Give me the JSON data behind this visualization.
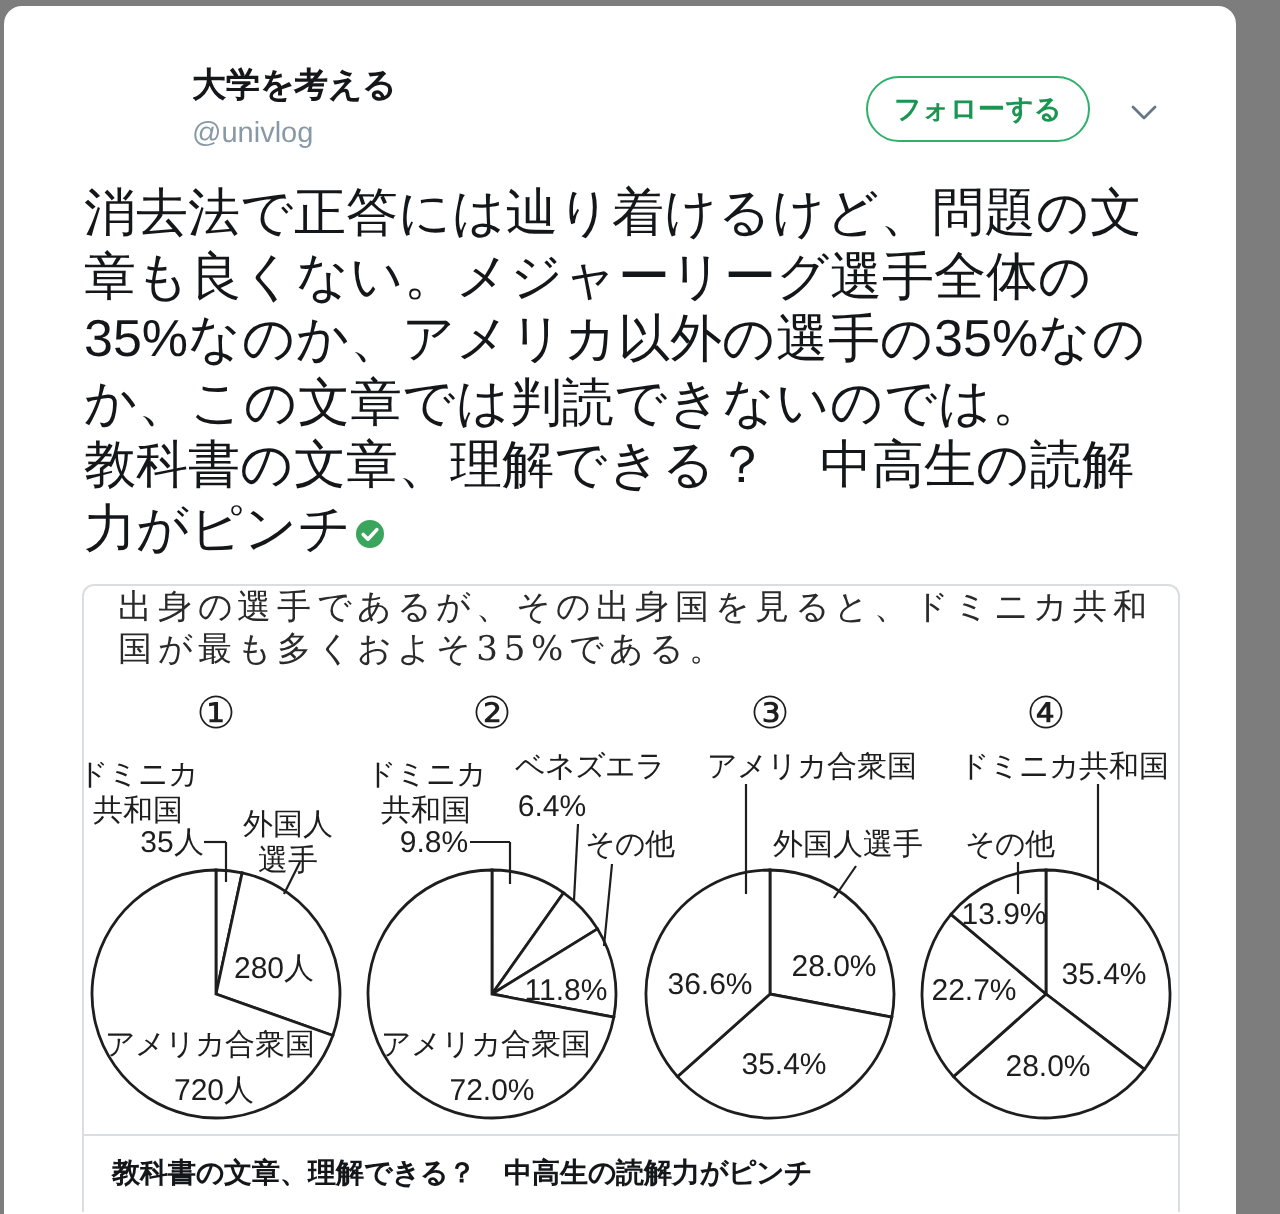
{
  "chart_data": [
    {
      "type": "other",
      "title": "大学を考える",
      "subtitle": "@univlog",
      "annotations": [
        "フォローする",
        "消去法で正答には辿り着けるけど、問題の文章も良くない。メジャーリーグ選手全体の35%なのか、アメリカ以外の選手の35%なのか、この文章では判読できないのでは。",
        "教科書の文章、理解できる？　中高生の読解力がピンチ",
        "出身の選手であるが、その出身国を見ると、ドミニカ共和国が最も多くおよそ35%である。",
        "教科書の文章、理解できる？　中高生の読解力がピンチ"
      ]
    },
    {
      "type": "pie",
      "title": "①",
      "categories": [
        "ドミニカ共和国",
        "外国人選手",
        "アメリカ合衆国"
      ],
      "values": [
        35,
        280,
        720
      ],
      "value_labels": [
        "35人",
        "280人",
        "720人"
      ],
      "colors": [
        "#ffffff",
        "#ffffff",
        "#ffffff"
      ]
    },
    {
      "type": "pie",
      "title": "②",
      "categories": [
        "ドミニカ共和国",
        "ベネズエラ",
        "その他",
        "アメリカ合衆国"
      ],
      "values": [
        9.8,
        6.4,
        11.8,
        72.0
      ],
      "value_labels": [
        "9.8%",
        "6.4%",
        "11.8%",
        "72.0%"
      ],
      "colors": [
        "#ffffff",
        "#ffffff",
        "#ffffff",
        "#ffffff"
      ]
    },
    {
      "type": "pie",
      "title": "③",
      "categories": [
        "外国人選手",
        null,
        "アメリカ合衆国"
      ],
      "values": [
        28.0,
        35.4,
        36.6
      ],
      "value_labels": [
        "28.0%",
        "35.4%",
        "36.6%"
      ],
      "colors": [
        "#ffffff",
        "#ffffff",
        "#ffffff"
      ]
    },
    {
      "type": "pie",
      "title": "④",
      "categories": [
        "ドミニカ共和国",
        null,
        null,
        "その他"
      ],
      "values": [
        35.4,
        28.0,
        22.7,
        13.9
      ],
      "value_labels": [
        "35.4%",
        "28.0%",
        "22.7%",
        "13.9%"
      ],
      "colors": [
        "#ffffff",
        "#ffffff",
        "#ffffff",
        "#ffffff"
      ]
    }
  ]
}
